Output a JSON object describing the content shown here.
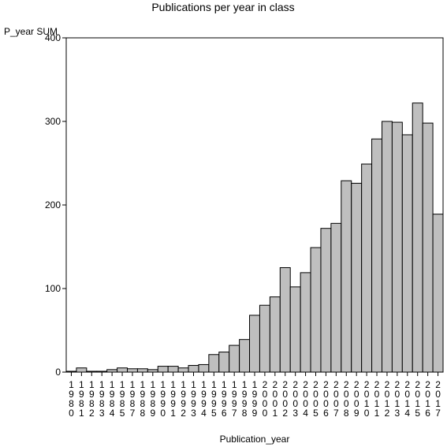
{
  "chart_data": {
    "type": "bar",
    "title": "Publications per year in class",
    "ylabel": "P_year SUM",
    "xlabel": "Publication_year",
    "ylim": [
      0,
      400
    ],
    "yticks": [
      0,
      100,
      200,
      300,
      400
    ],
    "grid": false,
    "colors": {
      "bar_fill": "#bfbfbf",
      "bar_stroke": "#000000"
    },
    "categories": [
      "1980",
      "1981",
      "1982",
      "1983",
      "1984",
      "1985",
      "1987",
      "1988",
      "1989",
      "1990",
      "1991",
      "1992",
      "1993",
      "1994",
      "1995",
      "1996",
      "1997",
      "1998",
      "1999",
      "2000",
      "2001",
      "2002",
      "2003",
      "2004",
      "2005",
      "2006",
      "2007",
      "2008",
      "2009",
      "2010",
      "2011",
      "2012",
      "2013",
      "2014",
      "2015",
      "2016",
      "2017"
    ],
    "values": [
      1,
      5,
      1,
      1,
      3,
      5,
      4,
      4,
      3,
      7,
      7,
      5,
      8,
      9,
      21,
      24,
      32,
      39,
      68,
      80,
      90,
      125,
      102,
      119,
      149,
      172,
      178,
      229,
      226,
      249,
      279,
      300,
      299,
      284,
      322,
      298,
      189
    ]
  }
}
